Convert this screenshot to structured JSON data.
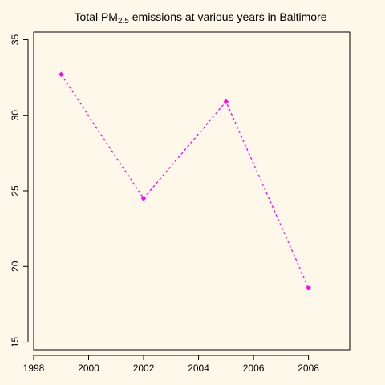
{
  "chart_data": {
    "type": "line",
    "title": {
      "prefix": "Total PM",
      "subscript": "2.5",
      "suffix": " emissions at various years in Baltimore"
    },
    "xlabel": "",
    "ylabel": "",
    "x": [
      1999,
      2002,
      2005,
      2008
    ],
    "series": [
      {
        "values": [
          32.7,
          24.5,
          30.9,
          18.6
        ]
      }
    ],
    "xlim": [
      1998,
      2009.5
    ],
    "ylim": [
      14.5,
      35.5
    ],
    "xticks": [
      "1998",
      "2000",
      "2002",
      "2004",
      "2006",
      "2008"
    ],
    "yticks": [
      "15",
      "20",
      "25",
      "30",
      "35"
    ],
    "line_style": "dotted",
    "marker": "diamond",
    "grid": false,
    "legend": "none",
    "colors": {
      "series": "#ff00ff",
      "background": "#fdf8ea",
      "axis": "#000000"
    }
  }
}
